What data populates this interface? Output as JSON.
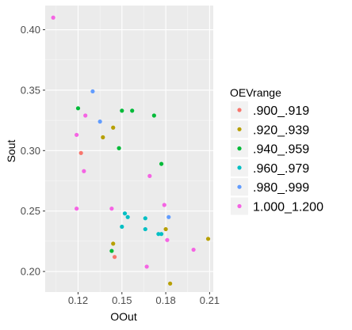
{
  "chart_data": {
    "type": "scatter",
    "xlabel": "OOut",
    "ylabel": "Sout",
    "xlim": [
      0.0975,
      0.2125
    ],
    "ylim": [
      0.183,
      0.42
    ],
    "xticks": [
      0.12,
      0.15,
      0.18,
      0.21
    ],
    "xtick_labels": [
      "0.12",
      "0.15",
      "0.18",
      "0.21"
    ],
    "yticks": [
      0.2,
      0.25,
      0.3,
      0.35,
      0.4
    ],
    "ytick_labels": [
      "0.20",
      "0.25",
      "0.30",
      "0.35",
      "0.40"
    ],
    "grid": true,
    "panel_background": "#ebebeb",
    "legend": {
      "title": "OEVrange",
      "position": "right"
    },
    "series": [
      {
        "name": ".900_.919",
        "color": "#F8766D",
        "points": [
          [
            0.122,
            0.298
          ],
          [
            0.145,
            0.212
          ]
        ]
      },
      {
        "name": ".920_.939",
        "color": "#B79F00",
        "points": [
          [
            0.137,
            0.311
          ],
          [
            0.144,
            0.319
          ],
          [
            0.144,
            0.223
          ],
          [
            0.18,
            0.235
          ],
          [
            0.183,
            0.19
          ],
          [
            0.209,
            0.227
          ]
        ]
      },
      {
        "name": ".940_.959",
        "color": "#00BA38",
        "points": [
          [
            0.12,
            0.335
          ],
          [
            0.15,
            0.333
          ],
          [
            0.157,
            0.333
          ],
          [
            0.148,
            0.302
          ],
          [
            0.143,
            0.217
          ],
          [
            0.172,
            0.329
          ],
          [
            0.177,
            0.289
          ]
        ]
      },
      {
        "name": ".960_.979",
        "color": "#00BFC4",
        "points": [
          [
            0.152,
            0.248
          ],
          [
            0.15,
            0.237
          ],
          [
            0.166,
            0.244
          ],
          [
            0.166,
            0.235
          ],
          [
            0.175,
            0.231
          ],
          [
            0.177,
            0.231
          ],
          [
            0.154,
            0.245
          ]
        ]
      },
      {
        "name": ".980_.999",
        "color": "#619CFF",
        "points": [
          [
            0.13,
            0.349
          ],
          [
            0.135,
            0.324
          ],
          [
            0.182,
            0.245
          ]
        ]
      },
      {
        "name": "1.000_1.200",
        "color": "#F564E3",
        "points": [
          [
            0.103,
            0.41
          ],
          [
            0.125,
            0.329
          ],
          [
            0.119,
            0.313
          ],
          [
            0.124,
            0.283
          ],
          [
            0.119,
            0.252
          ],
          [
            0.143,
            0.252
          ],
          [
            0.169,
            0.279
          ],
          [
            0.179,
            0.255
          ],
          [
            0.167,
            0.204
          ],
          [
            0.181,
            0.226
          ],
          [
            0.199,
            0.218
          ]
        ]
      }
    ]
  }
}
